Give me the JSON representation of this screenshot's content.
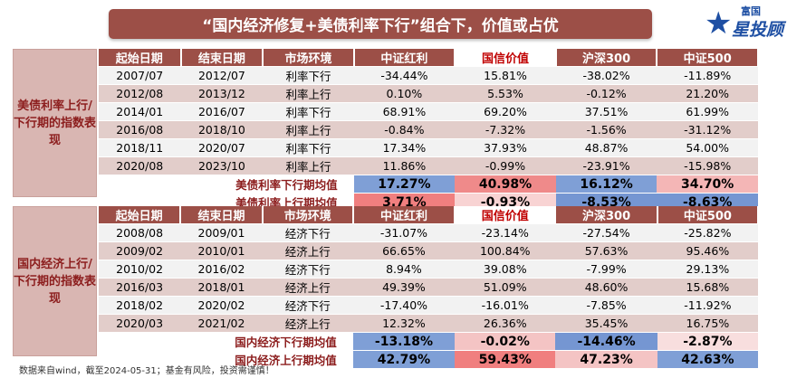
{
  "title": "“国内经济修复+美债利率下行”组合下，价值或占优",
  "logo": {
    "top": "富国",
    "main": "星投顾",
    "star": "★"
  },
  "headers": [
    "起始日期",
    "结束日期",
    "市场环境",
    "中证红利",
    "国信价值",
    "沪深300",
    "中证500"
  ],
  "section1": {
    "label": "美债利率上行/下行期的指数表现",
    "rows": [
      {
        "start": "2007/07",
        "end": "2012/07",
        "env": "利率下行",
        "v": [
          "-34.44%",
          "15.81%",
          "-38.02%",
          "-11.89%"
        ]
      },
      {
        "start": "2012/08",
        "end": "2013/12",
        "env": "利率上行",
        "v": [
          "0.10%",
          "5.53%",
          "-0.12%",
          "21.20%"
        ]
      },
      {
        "start": "2014/01",
        "end": "2016/07",
        "env": "利率下行",
        "v": [
          "68.91%",
          "69.20%",
          "37.51%",
          "61.99%"
        ]
      },
      {
        "start": "2016/08",
        "end": "2018/10",
        "env": "利率上行",
        "v": [
          "-0.84%",
          "-7.32%",
          "-1.56%",
          "-31.12%"
        ]
      },
      {
        "start": "2018/11",
        "end": "2020/07",
        "env": "利率下行",
        "v": [
          "17.34%",
          "37.93%",
          "48.87%",
          "54.00%"
        ]
      },
      {
        "start": "2020/08",
        "end": "2023/10",
        "env": "利率上行",
        "v": [
          "11.86%",
          "-0.99%",
          "-23.91%",
          "-15.98%"
        ]
      }
    ],
    "averages": [
      {
        "label": "美债利率下行期均值",
        "v": [
          "17.27%",
          "40.98%",
          "16.12%",
          "34.70%"
        ],
        "colors": [
          "#7f9fd6",
          "#ef8a8a",
          "#7f9fd6",
          "#f4b6b6"
        ]
      },
      {
        "label": "美债利率上行期均值",
        "v": [
          "3.71%",
          "-0.93%",
          "-8.53%",
          "-8.63%"
        ],
        "colors": [
          "#f07f7f",
          "#f8d3d3",
          "#7596d2",
          "#7596d2"
        ]
      }
    ]
  },
  "section2": {
    "label": "国内经济上行/下行期的指数表现",
    "rows": [
      {
        "start": "2008/08",
        "end": "2009/01",
        "env": "经济下行",
        "v": [
          "-31.07%",
          "-23.14%",
          "-27.54%",
          "-25.82%"
        ]
      },
      {
        "start": "2009/02",
        "end": "2010/01",
        "env": "经济上行",
        "v": [
          "66.65%",
          "100.84%",
          "57.63%",
          "95.46%"
        ]
      },
      {
        "start": "2010/02",
        "end": "2016/02",
        "env": "经济下行",
        "v": [
          "8.94%",
          "39.08%",
          "-7.99%",
          "29.13%"
        ]
      },
      {
        "start": "2016/03",
        "end": "2018/01",
        "env": "经济上行",
        "v": [
          "49.39%",
          "51.09%",
          "48.60%",
          "15.68%"
        ]
      },
      {
        "start": "2018/02",
        "end": "2020/02",
        "env": "经济下行",
        "v": [
          "-17.40%",
          "-16.01%",
          "-7.85%",
          "-11.92%"
        ]
      },
      {
        "start": "2020/03",
        "end": "2021/02",
        "env": "经济上行",
        "v": [
          "12.32%",
          "26.36%",
          "35.45%",
          "16.75%"
        ]
      }
    ],
    "averages": [
      {
        "label": "国内经济下行期均值",
        "v": [
          "-13.18%",
          "-0.02%",
          "-14.46%",
          "-2.87%"
        ],
        "colors": [
          "#7f9fd6",
          "#f4c4c4",
          "#7596d2",
          "#f8dede"
        ]
      },
      {
        "label": "国内经济上行期均值",
        "v": [
          "42.79%",
          "59.43%",
          "47.23%",
          "42.63%"
        ],
        "colors": [
          "#7f9fd6",
          "#f07f7f",
          "#f4c4c4",
          "#7f9fd6"
        ]
      }
    ]
  },
  "footer": "数据来自wind，截至2024-05-31；基金有风险，投资需谨慎！"
}
